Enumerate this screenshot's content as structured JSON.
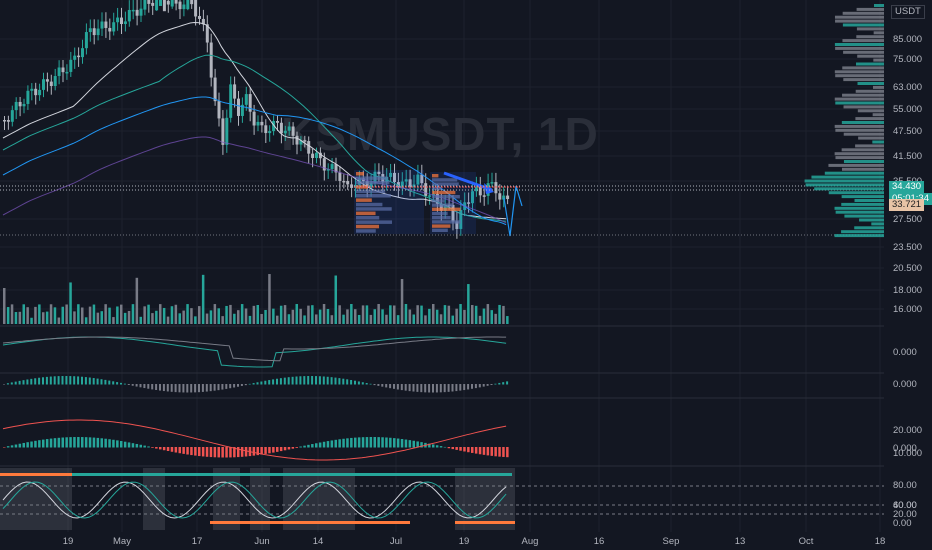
{
  "chart_data": {
    "type": "candlestick",
    "watermark": "KSMUSDT, 1D",
    "quote_currency": "USDT",
    "last_price": "34.430",
    "countdown": "05:01:34",
    "marker_price": "33.721",
    "price_axis_ticks": [
      "85.000",
      "75.000",
      "63.000",
      "55.000",
      "47.500",
      "41.500",
      "35.500",
      "27.500",
      "23.500",
      "20.500",
      "18.000",
      "16.000"
    ],
    "time_axis_ticks": [
      "19",
      "May",
      "17",
      "Jun",
      "14",
      "Jul",
      "19",
      "Aug",
      "16",
      "Sep",
      "13",
      "Oct",
      "18"
    ],
    "indicator_ticks": {
      "panel1": [
        "0.000"
      ],
      "panel2": [
        "0.000"
      ],
      "panel3": [
        "20.000",
        "10.000",
        "0.000"
      ],
      "panel4": [
        "80.00",
        "60.00",
        "40.00",
        "20.00",
        "0.00"
      ]
    },
    "colors": {
      "background": "#131722",
      "up": "#26a69a",
      "down": "#b2b5be",
      "ma_fast": "#d1d4dc",
      "ma_mid": "#2196f3",
      "ma_slow": "#7e57c2",
      "accent_red": "#ef5350",
      "accent_orange": "#ff7a3c",
      "arrow_blue": "#2962ff"
    },
    "log_scale": true
  }
}
